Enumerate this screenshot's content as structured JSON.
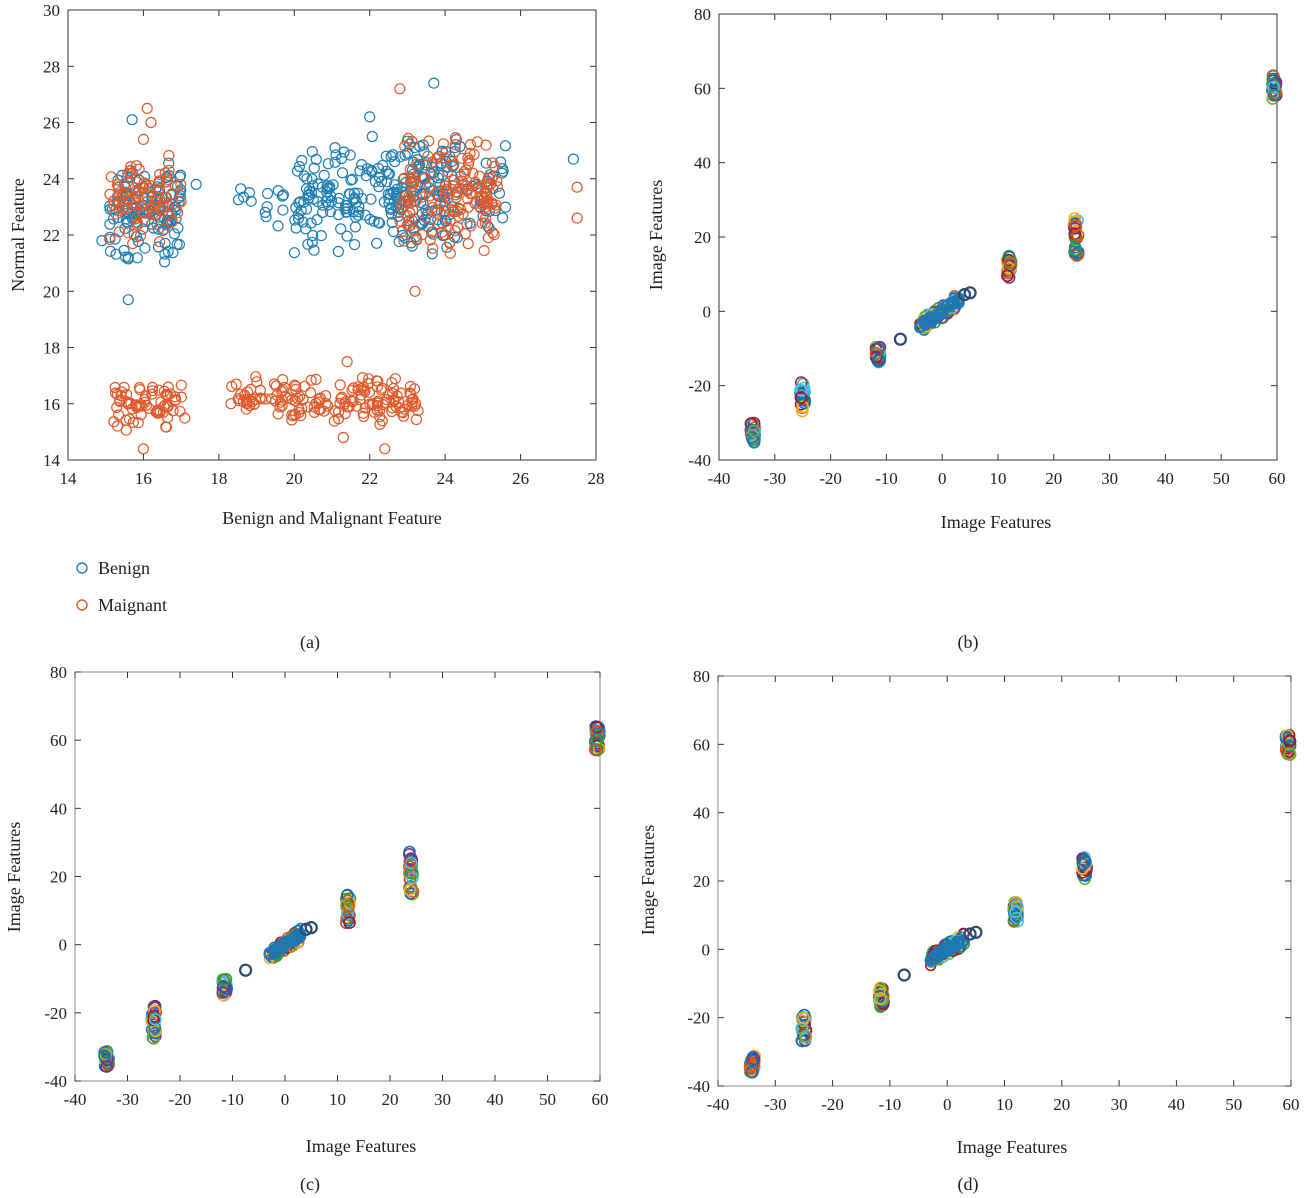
{
  "panels": [
    {
      "caption": "(a)",
      "chart_data": {
        "type": "scatter",
        "xlabel": "Benign and Malignant Feature",
        "ylabel": "Normal Feature",
        "xlim": [
          14,
          28
        ],
        "ylim": [
          14,
          30
        ],
        "xticks": [
          14,
          16,
          18,
          20,
          22,
          24,
          26,
          28
        ],
        "yticks": [
          14,
          16,
          18,
          20,
          22,
          24,
          26,
          28,
          30
        ],
        "grid": false,
        "legend_position": "below-left",
        "series": [
          {
            "name": "Benign",
            "color": "#1f7fb4",
            "clusters": [
              {
                "x": [
                  15.1,
                  17.0
                ],
                "y": [
                  20.7,
                  25.0
                ],
                "n": 130
              },
              {
                "x": [
                  18.5,
                  21.0
                ],
                "y": [
                  22.2,
                  24.2
                ],
                "n": 22
              },
              {
                "x": [
                  20.0,
                  24.3
                ],
                "y": [
                  21.2,
                  25.6
                ],
                "n": 200
              },
              {
                "x": [
                  22.5,
                  25.7
                ],
                "y": [
                  21.5,
                  25.8
                ],
                "n": 90
              }
            ],
            "points": [
              [
                15.6,
                19.7
              ],
              [
                15.7,
                26.1
              ],
              [
                17.4,
                23.8
              ],
              [
                23.7,
                27.4
              ],
              [
                22.0,
                26.2
              ],
              [
                27.4,
                24.7
              ],
              [
                14.9,
                21.8
              ]
            ]
          },
          {
            "name": "Maignant",
            "color": "#e05a2b",
            "clusters": [
              {
                "x": [
                  15.1,
                  17.0
                ],
                "y": [
                  21.5,
                  25.0
                ],
                "n": 80
              },
              {
                "x": [
                  22.8,
                  25.4
                ],
                "y": [
                  21.2,
                  25.8
                ],
                "n": 150
              },
              {
                "x": [
                  15.2,
                  17.1
                ],
                "y": [
                  15.0,
                  16.8
                ],
                "n": 70
              },
              {
                "x": [
                  18.3,
                  23.3
                ],
                "y": [
                  15.2,
                  17.0
                ],
                "n": 160
              }
            ],
            "points": [
              [
                16.1,
                26.5
              ],
              [
                16.2,
                26.0
              ],
              [
                16.0,
                25.4
              ],
              [
                22.8,
                27.2
              ],
              [
                23.2,
                20.0
              ],
              [
                27.5,
                22.6
              ],
              [
                27.5,
                23.7
              ],
              [
                16.0,
                14.4
              ],
              [
                21.3,
                14.8
              ],
              [
                22.4,
                14.4
              ],
              [
                21.4,
                17.5
              ]
            ]
          }
        ]
      }
    },
    {
      "caption": "(b)",
      "chart_data": {
        "type": "scatter",
        "xlabel": "Image Features",
        "ylabel": "Image Features",
        "xlim": [
          -40,
          60
        ],
        "ylim": [
          -40,
          80
        ],
        "xticks": [
          -40,
          -30,
          -20,
          -10,
          0,
          10,
          20,
          30,
          40,
          50,
          60
        ],
        "yticks": [
          -40,
          -20,
          0,
          20,
          40,
          60,
          80
        ],
        "grid": false,
        "columns": [
          {
            "x": -34,
            "y": [
              -36,
              -30
            ]
          },
          {
            "x": -25,
            "y": [
              -27,
              -19
            ]
          },
          {
            "x": -11.5,
            "y": [
              -14,
              -9
            ]
          },
          {
            "x": 12,
            "y": [
              9,
              15
            ]
          },
          {
            "x": 24,
            "y": [
              15,
              25
            ]
          },
          {
            "x": 59.5,
            "y": [
              57,
              64
            ]
          }
        ],
        "center_x": [
          -4,
          3
        ],
        "isolated_points": [
          [
            -7.5,
            -7.5
          ],
          [
            4,
            4.5
          ],
          [
            5,
            5
          ]
        ]
      }
    },
    {
      "caption": "(c)",
      "chart_data": {
        "type": "scatter",
        "xlabel": "Image Features",
        "ylabel": "Image Features",
        "xlim": [
          -40,
          60
        ],
        "ylim": [
          -40,
          80
        ],
        "xticks": [
          -40,
          -30,
          -20,
          -10,
          0,
          10,
          20,
          30,
          40,
          50,
          60
        ],
        "yticks": [
          -40,
          -20,
          0,
          20,
          40,
          60,
          80
        ],
        "grid": false,
        "columns": [
          {
            "x": -34,
            "y": [
              -36,
              -31
            ]
          },
          {
            "x": -25,
            "y": [
              -28,
              -18
            ]
          },
          {
            "x": -11.5,
            "y": [
              -15,
              -10
            ]
          },
          {
            "x": 12,
            "y": [
              6,
              15
            ]
          },
          {
            "x": 24,
            "y": [
              14,
              28
            ]
          },
          {
            "x": 59.5,
            "y": [
              57,
              64
            ]
          }
        ],
        "center_x": [
          -3,
          3
        ],
        "isolated_points": [
          [
            -7.5,
            -7.5
          ],
          [
            4,
            4.5
          ],
          [
            5,
            5
          ]
        ]
      }
    },
    {
      "caption": "(d)",
      "chart_data": {
        "type": "scatter",
        "xlabel": "Image Features",
        "ylabel": "Image Features",
        "xlim": [
          -40,
          60
        ],
        "ylim": [
          -40,
          80
        ],
        "xticks": [
          -40,
          -30,
          -20,
          -10,
          0,
          10,
          20,
          30,
          40,
          50,
          60
        ],
        "yticks": [
          -40,
          -20,
          0,
          20,
          40,
          60,
          80
        ],
        "grid": false,
        "columns": [
          {
            "x": -34,
            "y": [
              -36,
              -31
            ]
          },
          {
            "x": -25,
            "y": [
              -27,
              -19
            ]
          },
          {
            "x": -11.5,
            "y": [
              -17,
              -11
            ]
          },
          {
            "x": 12,
            "y": [
              8,
              14
            ]
          },
          {
            "x": 24,
            "y": [
              20,
              27
            ]
          },
          {
            "x": 59.5,
            "y": [
              57,
              63
            ]
          }
        ],
        "center_x": [
          -3,
          3
        ],
        "isolated_points": [
          [
            -7.5,
            -7.5
          ],
          [
            4,
            4.5
          ],
          [
            5,
            5
          ]
        ]
      }
    }
  ],
  "palette": [
    "#0072bd",
    "#d95319",
    "#edb120",
    "#7e2f8e",
    "#77ac30",
    "#4dbeee",
    "#a2142f",
    "#1f77b4",
    "#2ca02c"
  ],
  "dark_marker": "#2b4a6f"
}
